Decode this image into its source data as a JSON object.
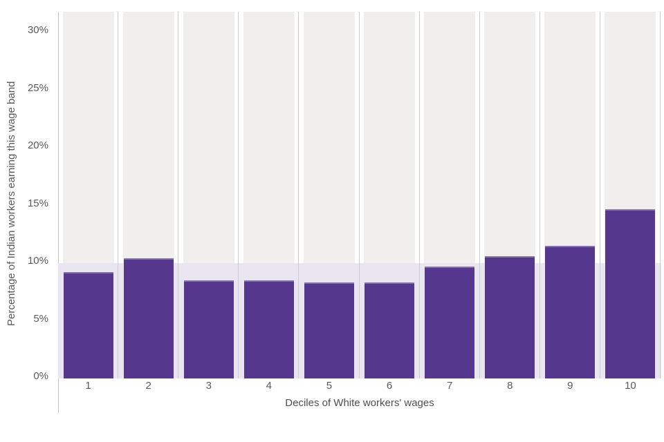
{
  "chart_data": {
    "type": "bar",
    "title": "",
    "categories": [
      "1",
      "2",
      "3",
      "4",
      "5",
      "6",
      "7",
      "8",
      "9",
      "10"
    ],
    "values": [
      9.2,
      10.4,
      8.5,
      8.5,
      8.3,
      8.3,
      9.7,
      10.6,
      11.5,
      14.7
    ],
    "xlabel": "Deciles of White workers' wages",
    "ylabel": "Percentage of Indian workers earning this wage band",
    "yticks": [
      {
        "value": 0,
        "label": "0%"
      },
      {
        "value": 5,
        "label": "5%"
      },
      {
        "value": 10,
        "label": "10%"
      },
      {
        "value": 15,
        "label": "15%"
      },
      {
        "value": 20,
        "label": "20%"
      },
      {
        "value": 25,
        "label": "25%"
      },
      {
        "value": 30,
        "label": "30%"
      }
    ],
    "ylim": [
      0,
      31.8
    ],
    "legend": "none",
    "grid": "vertical-shaded-columns",
    "reference_band": {
      "from_pct": 0,
      "to_pct": 10
    },
    "colors": {
      "bar": "#55388e",
      "reference_band": "#e9e6f2",
      "column_background": "#f0efee",
      "gridline": "#cccccc",
      "axis_line": "#c5c5c5",
      "tick_text": "#595959",
      "axis_title_text": "#4f4f4f",
      "background": "#ffffff"
    }
  }
}
